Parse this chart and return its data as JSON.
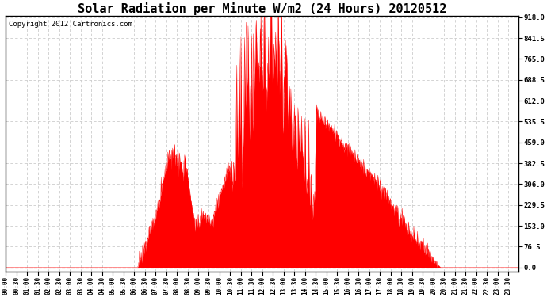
{
  "title": "Solar Radiation per Minute W/m2 (24 Hours) 20120512",
  "copyright_text": "Copyright 2012 Cartronics.com",
  "y_ticks": [
    0.0,
    76.5,
    153.0,
    229.5,
    306.0,
    382.5,
    459.0,
    535.5,
    612.0,
    688.5,
    765.0,
    841.5,
    918.0
  ],
  "y_min": 0.0,
  "y_max": 918.0,
  "fill_color": "#ff0000",
  "line_color": "#ff0000",
  "dashed_line_color": "#cc0000",
  "grid_color": "#cccccc",
  "background_color": "#ffffff",
  "title_fontsize": 11,
  "copyright_fontsize": 6.5,
  "tick_fontsize": 5.5,
  "ytick_fontsize": 6.5,
  "figwidth": 6.9,
  "figheight": 3.75,
  "dpi": 100
}
